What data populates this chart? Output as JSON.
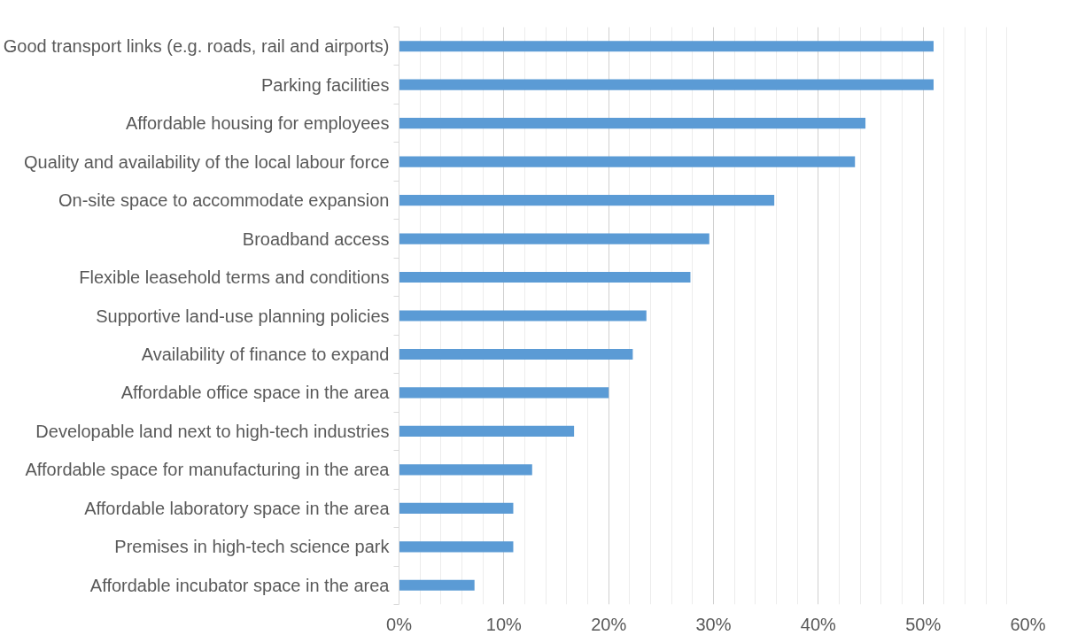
{
  "chart_data": {
    "type": "bar",
    "orientation": "horizontal",
    "categories": [
      "Good transport links (e.g. roads, rail and airports)",
      "Parking facilities",
      "Affordable housing for employees",
      "Quality and availability of the local labour force",
      "On-site space to accommodate expansion",
      "Broadband access",
      "Flexible leasehold terms and conditions",
      "Supportive land-use planning policies",
      "Availability of finance to expand",
      "Affordable office space in the area",
      "Developable land next to high-tech industries",
      "Affordable space for manufacturing in the area",
      "Affordable laboratory space in the area",
      "Premises in high-tech science park",
      "Affordable incubator space in the area"
    ],
    "values": [
      51.0,
      51.0,
      44.5,
      43.5,
      35.8,
      29.6,
      27.8,
      23.6,
      22.3,
      20.0,
      16.7,
      12.7,
      10.9,
      10.9,
      7.2
    ],
    "color": "#5b9bd5",
    "xlim": [
      0,
      60
    ],
    "xticks": [
      {
        "value": 0,
        "label": "0%"
      },
      {
        "value": 2,
        "label": null
      },
      {
        "value": 4,
        "label": null
      },
      {
        "value": 6,
        "label": null
      },
      {
        "value": 8,
        "label": null
      },
      {
        "value": 10,
        "label": "10%"
      },
      {
        "value": 12,
        "label": null
      },
      {
        "value": 14,
        "label": null
      },
      {
        "value": 16,
        "label": null
      },
      {
        "value": 18,
        "label": null
      },
      {
        "value": 20,
        "label": "20%"
      },
      {
        "value": 22,
        "label": null
      },
      {
        "value": 24,
        "label": null
      },
      {
        "value": 26,
        "label": null
      },
      {
        "value": 28,
        "label": null
      },
      {
        "value": 30,
        "label": "30%"
      },
      {
        "value": 32,
        "label": null
      },
      {
        "value": 34,
        "label": null
      },
      {
        "value": 36,
        "label": null
      },
      {
        "value": 38,
        "label": null
      },
      {
        "value": 40,
        "label": "40%"
      },
      {
        "value": 42,
        "label": null
      },
      {
        "value": 44,
        "label": null
      },
      {
        "value": 46,
        "label": null
      },
      {
        "value": 48,
        "label": null
      },
      {
        "value": 50,
        "label": "50%"
      },
      {
        "value": 52,
        "label": null
      },
      {
        "value": 54,
        "label": null
      },
      {
        "value": 56,
        "label": null
      },
      {
        "value": 58,
        "label": null
      },
      {
        "value": 60,
        "label": "60%"
      }
    ],
    "grid": "x"
  }
}
